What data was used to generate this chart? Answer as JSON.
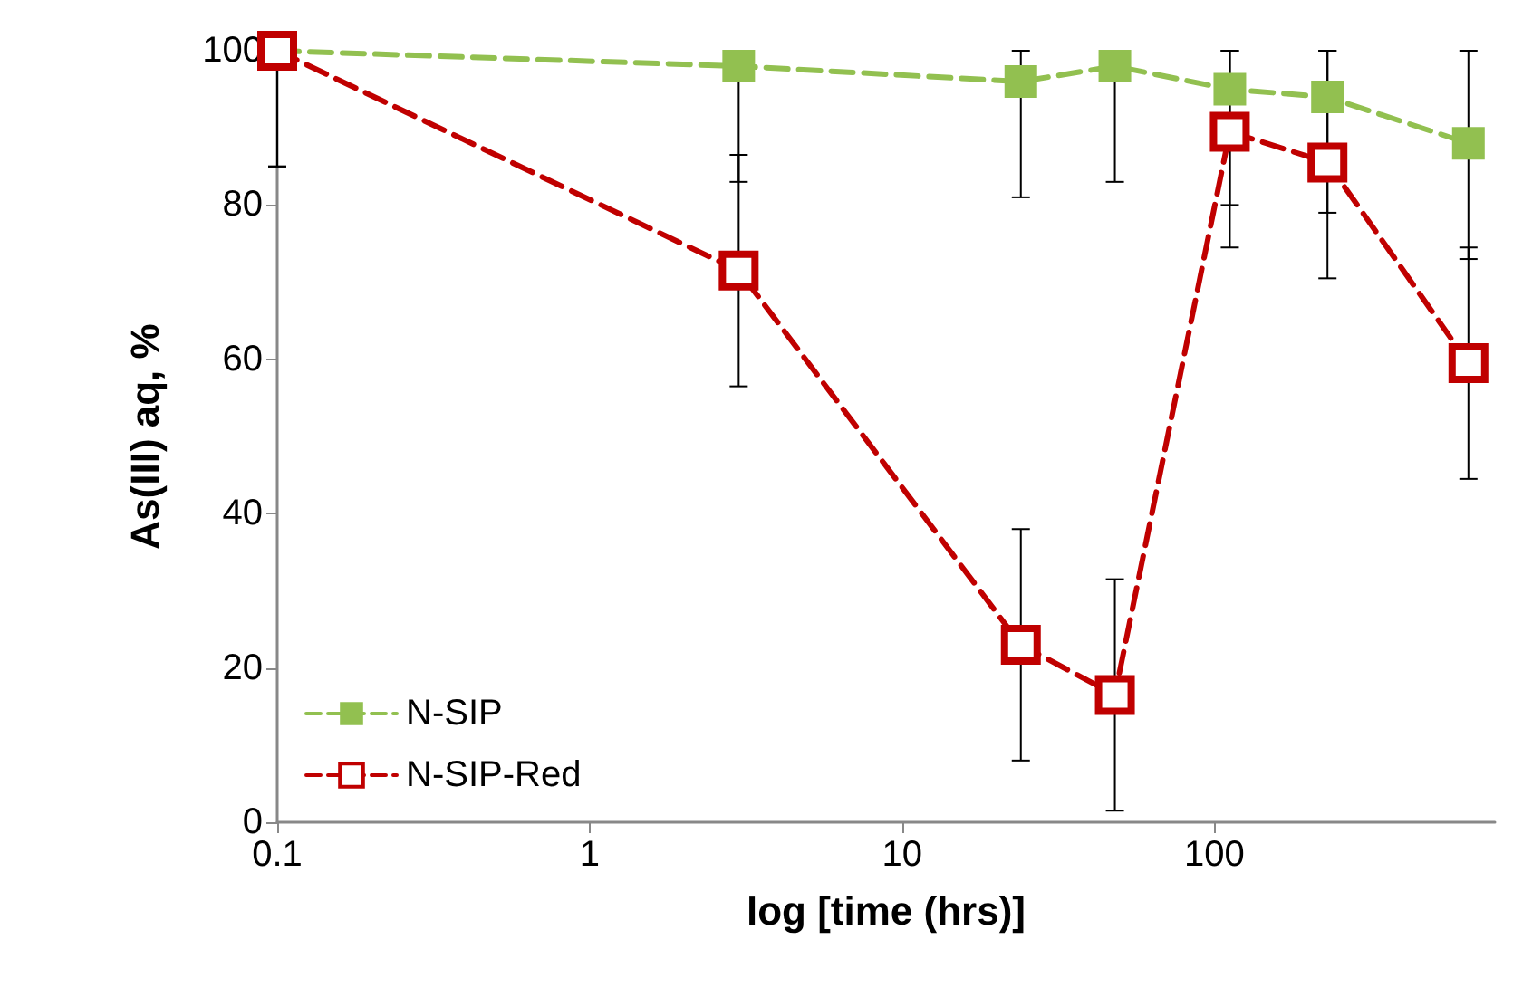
{
  "chart_data": {
    "type": "line",
    "xlabel": "log [time (hrs)]",
    "ylabel": "As(III) aq, %",
    "log": "x",
    "x": [
      0.1,
      3,
      24,
      48,
      112,
      230,
      650
    ],
    "series": [
      {
        "name": "N-SIP",
        "color": "#92c050",
        "values": [
          100,
          98,
          96,
          98,
          95,
          94,
          88
        ],
        "errors": [
          [
            85,
            100
          ],
          [
            83,
            100
          ],
          [
            81,
            100
          ],
          [
            83,
            100
          ],
          [
            80,
            100
          ],
          [
            79,
            100
          ],
          [
            73,
            100
          ]
        ]
      },
      {
        "name": "N-SIP-Red",
        "color": "#c00000",
        "values": [
          100,
          71.5,
          23,
          16.5,
          89.5,
          85.5,
          59.5
        ],
        "errors": [
          [
            85,
            100
          ],
          [
            56.5,
            86.5
          ],
          [
            8,
            38
          ],
          [
            1.5,
            31.5
          ],
          [
            74.5,
            100
          ],
          [
            70.5,
            100
          ],
          [
            44.5,
            74.5
          ]
        ]
      }
    ],
    "xlim": [
      0.1,
      790
    ],
    "xticks": [
      0.1,
      1,
      10,
      100
    ],
    "ylim": [
      0,
      100
    ],
    "yticks": [
      0,
      20,
      40,
      60,
      80,
      100
    ],
    "grid": false,
    "legend": "bottom left",
    "marker": "square",
    "line_style": "dashed"
  }
}
